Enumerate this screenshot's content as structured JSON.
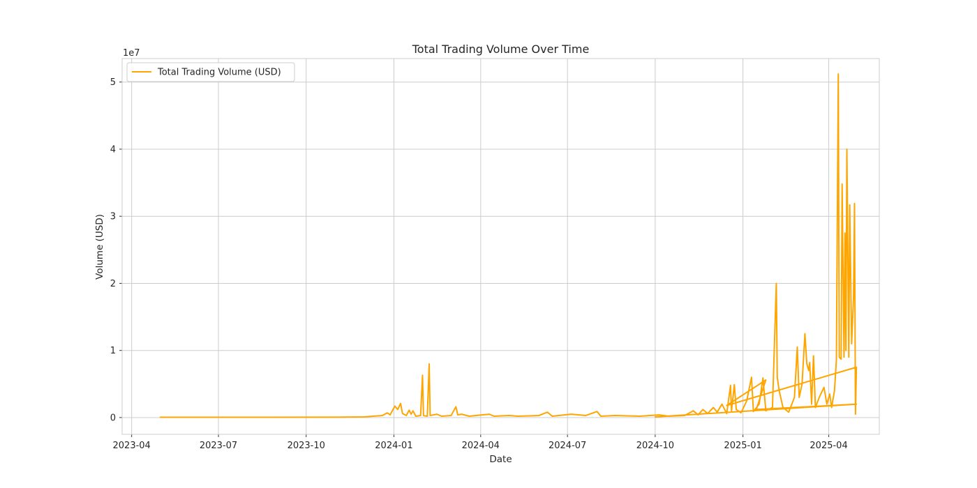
{
  "chart_data": {
    "type": "line",
    "title": "Total Trading Volume Over Time",
    "xlabel": "Date",
    "ylabel": "Volume (USD)",
    "y_offset_text": "1e7",
    "y_scale": 10000000,
    "xlim": [
      "2023-03-22",
      "2025-05-24"
    ],
    "ylim": [
      -2500000,
      53500000
    ],
    "grid": true,
    "legend_position": "top-left",
    "line_color": "#ffa500",
    "x_ticks": [
      {
        "date": "2023-04-01",
        "label": "2023-04"
      },
      {
        "date": "2023-07-01",
        "label": "2023-07"
      },
      {
        "date": "2023-10-01",
        "label": "2023-10"
      },
      {
        "date": "2024-01-01",
        "label": "2024-01"
      },
      {
        "date": "2024-04-01",
        "label": "2024-04"
      },
      {
        "date": "2024-07-01",
        "label": "2024-07"
      },
      {
        "date": "2024-10-01",
        "label": "2024-10"
      },
      {
        "date": "2025-01-01",
        "label": "2025-01"
      },
      {
        "date": "2025-04-01",
        "label": "2025-04"
      }
    ],
    "y_ticks": [
      {
        "value": 0,
        "label": "0"
      },
      {
        "value": 10000000,
        "label": "1"
      },
      {
        "value": 20000000,
        "label": "2"
      },
      {
        "value": 30000000,
        "label": "3"
      },
      {
        "value": 40000000,
        "label": "4"
      },
      {
        "value": 50000000,
        "label": "5"
      }
    ],
    "series": [
      {
        "name": "Total Trading Volume (USD)",
        "points": [
          [
            "2023-05-01",
            50000
          ],
          [
            "2023-08-01",
            40000
          ],
          [
            "2023-11-01",
            60000
          ],
          [
            "2023-12-01",
            100000
          ],
          [
            "2023-12-10",
            200000
          ],
          [
            "2023-12-20",
            300000
          ],
          [
            "2023-12-25",
            700000
          ],
          [
            "2023-12-28",
            400000
          ],
          [
            "2024-01-02",
            1700000
          ],
          [
            "2024-01-05",
            1200000
          ],
          [
            "2024-01-08",
            2100000
          ],
          [
            "2024-01-10",
            600000
          ],
          [
            "2024-01-14",
            300000
          ],
          [
            "2024-01-17",
            1100000
          ],
          [
            "2024-01-19",
            500000
          ],
          [
            "2024-01-21",
            1000000
          ],
          [
            "2024-01-24",
            200000
          ],
          [
            "2024-01-29",
            300000
          ],
          [
            "2024-01-31",
            6300000
          ],
          [
            "2024-02-01",
            300000
          ],
          [
            "2024-02-05",
            200000
          ],
          [
            "2024-02-07",
            8000000
          ],
          [
            "2024-02-08",
            300000
          ],
          [
            "2024-02-15",
            500000
          ],
          [
            "2024-02-20",
            200000
          ],
          [
            "2024-03-01",
            300000
          ],
          [
            "2024-03-06",
            1600000
          ],
          [
            "2024-03-08",
            400000
          ],
          [
            "2024-03-12",
            500000
          ],
          [
            "2024-03-20",
            200000
          ],
          [
            "2024-04-10",
            500000
          ],
          [
            "2024-04-15",
            200000
          ],
          [
            "2024-05-01",
            300000
          ],
          [
            "2024-05-10",
            200000
          ],
          [
            "2024-06-01",
            300000
          ],
          [
            "2024-06-10",
            800000
          ],
          [
            "2024-06-15",
            200000
          ],
          [
            "2024-07-05",
            500000
          ],
          [
            "2024-07-20",
            300000
          ],
          [
            "2024-08-01",
            900000
          ],
          [
            "2024-08-05",
            200000
          ],
          [
            "2024-08-20",
            300000
          ],
          [
            "2024-09-15",
            200000
          ],
          [
            "2024-10-05",
            400000
          ],
          [
            "2024-10-15",
            200000
          ],
          [
            "2024-11-01",
            300000
          ],
          [
            "2024-11-10",
            1000000
          ],
          [
            "2024-11-15",
            400000
          ],
          [
            "2024-11-20",
            1200000
          ],
          [
            "2024-11-25",
            600000
          ],
          [
            "2024-12-01",
            1500000
          ],
          [
            "2024-12-05",
            800000
          ],
          [
            "2024-12-10",
            2000000
          ],
          [
            "2024-12-15",
            600000
          ],
          [
            "2024-12-19",
            4800000
          ],
          [
            "2024-12-20",
            1000000
          ],
          [
            "2024-12-23",
            4900000
          ],
          [
            "2024-12-25",
            1200000
          ],
          [
            "2024-12-30",
            700000
          ],
          [
            "2025-01-05",
            2500000
          ],
          [
            "2025-01-10",
            6000000
          ],
          [
            "2025-01-12",
            900000
          ],
          [
            "2025-01-18",
            2000000
          ],
          [
            "2025-01-22",
            5900000
          ],
          [
            "2025-01-25",
            1000000
          ],
          [
            "2025-02-01",
            1500000
          ],
          [
            "2025-02-05",
            20000000
          ],
          [
            "2025-02-06",
            6000000
          ],
          [
            "2025-02-08",
            4000000
          ],
          [
            "2025-02-12",
            1500000
          ],
          [
            "2025-02-18",
            800000
          ],
          [
            "2025-02-24",
            3000000
          ],
          [
            "2025-02-27",
            10500000
          ],
          [
            "2025-03-01",
            3000000
          ],
          [
            "2025-03-04",
            5000000
          ],
          [
            "2025-03-07",
            12500000
          ],
          [
            "2025-03-09",
            8000000
          ],
          [
            "2025-03-11",
            7000000
          ],
          [
            "2025-03-12",
            8200000
          ],
          [
            "2025-03-14",
            2000000
          ],
          [
            "2025-03-16",
            9200000
          ],
          [
            "2025-03-18",
            1500000
          ],
          [
            "2025-03-22",
            3000000
          ],
          [
            "2025-03-27",
            4500000
          ],
          [
            "2025-03-30",
            2000000
          ],
          [
            "2025-04-02",
            3500000
          ],
          [
            "2025-04-04",
            1500000
          ],
          [
            "2025-04-07",
            4000000
          ],
          [
            "2025-04-09",
            8600000
          ],
          [
            "2025-04-11",
            51200000
          ],
          [
            "2025-04-12",
            9000000
          ],
          [
            "2025-04-14",
            8700000
          ],
          [
            "2025-04-15",
            34800000
          ],
          [
            "2025-04-17",
            9000000
          ],
          [
            "2025-04-18",
            27500000
          ],
          [
            "2025-04-19",
            10000000
          ],
          [
            "2025-04-20",
            40000000
          ],
          [
            "2025-04-22",
            9000000
          ],
          [
            "2025-04-23",
            31700000
          ],
          [
            "2025-04-25",
            11000000
          ],
          [
            "2025-04-27",
            18000000
          ],
          [
            "2025-04-28",
            31900000
          ],
          [
            "2025-04-29",
            500000
          ],
          [
            "2025-04-30",
            7500000
          ],
          [
            "2024-12-15",
            1800000
          ],
          [
            "2025-01-25",
            5600000
          ],
          [
            "2025-01-15",
            1200000
          ],
          [
            "2025-04-30",
            2000000
          ],
          [
            "2024-10-01",
            100000
          ]
        ]
      }
    ]
  }
}
